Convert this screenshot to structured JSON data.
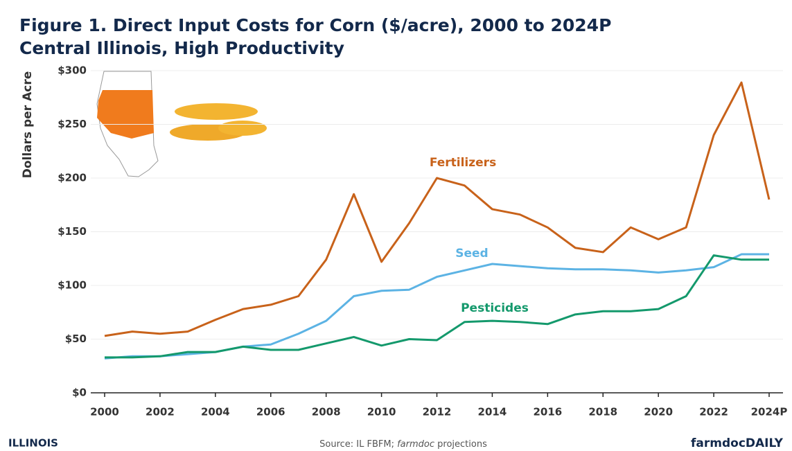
{
  "chart_data": {
    "type": "line",
    "title": "Figure 1. Direct Input Costs for Corn ($/acre), 2000 to 2024P",
    "subtitle": "Central Illinois, High Productivity",
    "y_axis_label": "Dollars per Acre",
    "categories": [
      "2000",
      null,
      "2002",
      null,
      "2004",
      null,
      "2006",
      null,
      "2008",
      null,
      "2010",
      null,
      "2012",
      null,
      "2014",
      null,
      "2016",
      null,
      "2018",
      null,
      "2020",
      null,
      "2022",
      null,
      "2024P"
    ],
    "series": [
      {
        "name": "Fertilizers",
        "color": "#c8621a",
        "values": [
          53,
          57,
          55,
          57,
          68,
          78,
          82,
          90,
          124,
          185,
          122,
          158,
          200,
          193,
          171,
          166,
          154,
          135,
          131,
          154,
          143,
          154,
          240,
          289,
          180
        ]
      },
      {
        "name": "Seed",
        "color": "#5cb3e4",
        "values": [
          32,
          34,
          34,
          36,
          38,
          43,
          45,
          55,
          67,
          90,
          95,
          96,
          108,
          114,
          120,
          118,
          116,
          115,
          115,
          114,
          112,
          114,
          117,
          129,
          129
        ]
      },
      {
        "name": "Pesticides",
        "color": "#14996c",
        "values": [
          33,
          33,
          34,
          38,
          38,
          43,
          40,
          40,
          46,
          52,
          44,
          50,
          49,
          66,
          67,
          66,
          64,
          73,
          76,
          76,
          78,
          90,
          128,
          124,
          124
        ]
      }
    ],
    "ylim": [
      0,
      300
    ],
    "yticks": [
      {
        "value": 0,
        "label": "$0"
      },
      {
        "value": 50,
        "label": "$50"
      },
      {
        "value": 100,
        "label": "$100"
      },
      {
        "value": 150,
        "label": "$150"
      },
      {
        "value": 200,
        "label": "$200"
      },
      {
        "value": 250,
        "label": "$250"
      },
      {
        "value": 300,
        "label": "$300"
      }
    ],
    "grid": true,
    "source": [
      "Source: IL FBFM; ",
      "farmdoc",
      " projections"
    ],
    "logo_left": "ILLINOIS",
    "logo_right": "farmdocDAILY"
  }
}
